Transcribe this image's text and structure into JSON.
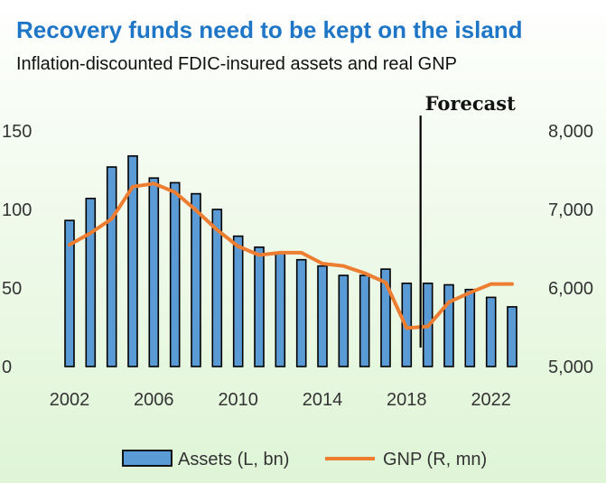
{
  "title": "Recovery funds need to be kept on the island",
  "subtitle": "Inflation-discounted FDIC-insured assets and real GNP",
  "forecast_label": "Forecast",
  "colors": {
    "title": "#1f76c7",
    "bar_fill": "#5b9bd5",
    "bar_edge": "#000000",
    "line": "#ed7d31"
  },
  "chart_data": {
    "type": "bar+line",
    "title": "Recovery funds need to be kept on the island",
    "subtitle": "Inflation-discounted FDIC-insured assets and real GNP",
    "x_tick_labels": [
      "2002",
      "2006",
      "2010",
      "2014",
      "2018",
      "2022"
    ],
    "x_ticks": [
      2002,
      2006,
      2010,
      2014,
      2018,
      2022
    ],
    "xlim": [
      2002,
      2023
    ],
    "y_left": {
      "ticks": [
        "150",
        "100",
        "50",
        "0"
      ],
      "tick_values": [
        150,
        100,
        50,
        0
      ],
      "ylim": [
        0,
        150
      ]
    },
    "y_right": {
      "ticks": [
        "8,000",
        "7,000",
        "6,000",
        "5,000"
      ],
      "tick_values": [
        8000,
        7000,
        6000,
        5000
      ],
      "ylim": [
        5000,
        8000
      ]
    },
    "forecast_start": 2019,
    "grid": false,
    "legend_position": "bottom",
    "series": [
      {
        "name": "Assets (L, bn)",
        "type": "bar",
        "axis": "left",
        "x": [
          2002,
          2003,
          2004,
          2005,
          2006,
          2007,
          2008,
          2009,
          2010,
          2011,
          2012,
          2013,
          2014,
          2015,
          2016,
          2017,
          2018,
          2019,
          2020,
          2021,
          2022,
          2023
        ],
        "values": [
          93,
          107,
          127,
          134,
          120,
          117,
          110,
          100,
          83,
          76,
          72,
          68,
          64,
          58,
          58,
          62,
          53,
          53,
          52,
          49,
          44,
          38
        ]
      },
      {
        "name": "GNP (R, mn)",
        "type": "line",
        "axis": "right",
        "x": [
          2002,
          2003,
          2004,
          2005,
          2006,
          2007,
          2008,
          2009,
          2010,
          2011,
          2012,
          2013,
          2014,
          2015,
          2016,
          2017,
          2018,
          2019,
          2020,
          2021,
          2022,
          2023
        ],
        "values": [
          6550,
          6700,
          6880,
          7290,
          7330,
          7220,
          6990,
          6740,
          6530,
          6420,
          6450,
          6450,
          6310,
          6280,
          6190,
          6070,
          5490,
          5510,
          5820,
          5940,
          6050,
          6050
        ]
      }
    ]
  }
}
